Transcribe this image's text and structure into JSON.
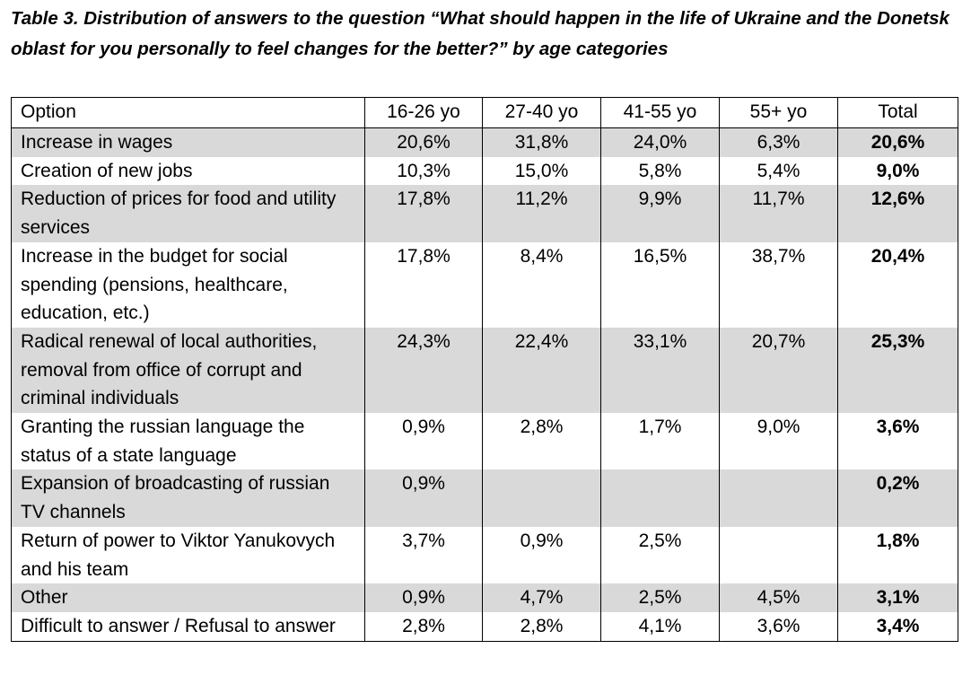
{
  "title": "Table 3. Distribution of answers to the question “What should happen in the life of Ukraine and the Donetsk oblast for you personally to feel changes for the better?” by age categories",
  "table": {
    "headers": [
      "Option",
      "16-26 yo",
      "27-40 yo",
      "41-55 yo",
      "55+ yo",
      "Total"
    ],
    "rows": [
      [
        "Increase in wages",
        "20,6%",
        "31,8%",
        "24,0%",
        "6,3%",
        "20,6%"
      ],
      [
        "Creation of new jobs",
        "10,3%",
        "15,0%",
        "5,8%",
        "5,4%",
        "9,0%"
      ],
      [
        "Reduction of prices for food and utility services",
        "17,8%",
        "11,2%",
        "9,9%",
        "11,7%",
        "12,6%"
      ],
      [
        "Increase in the budget for social spending (pensions, healthcare, education, etc.)",
        "17,8%",
        "8,4%",
        "16,5%",
        "38,7%",
        "20,4%"
      ],
      [
        "Radical renewal of local authorities, removal from office of corrupt and criminal individuals",
        "24,3%",
        "22,4%",
        "33,1%",
        "20,7%",
        "25,3%"
      ],
      [
        "Granting the russian language the status of a state language",
        "0,9%",
        "2,8%",
        "1,7%",
        "9,0%",
        "3,6%"
      ],
      [
        "Expansion of broadcasting of russian TV channels",
        "0,9%",
        "",
        "",
        "",
        "0,2%"
      ],
      [
        "Return of power to Viktor Yanukovych and his team",
        "3,7%",
        "0,9%",
        "2,5%",
        "",
        "1,8%"
      ],
      [
        "Other",
        "0,9%",
        "4,7%",
        "2,5%",
        "4,5%",
        "3,1%"
      ],
      [
        "Difficult to answer / Refusal to answer",
        "2,8%",
        "2,8%",
        "4,1%",
        "3,6%",
        "3,4%"
      ]
    ]
  }
}
